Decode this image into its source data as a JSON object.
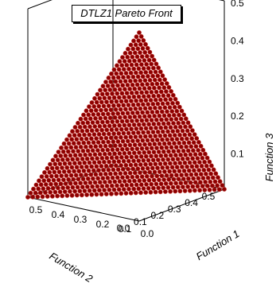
{
  "chart_data": {
    "type": "scatter3d",
    "title": "DTLZ1 Pareto Front",
    "x_axis": {
      "label": "Function 1",
      "range": [
        0,
        0.5
      ],
      "ticks": [
        "0.0",
        "0.1",
        "0.2",
        "0.3",
        "0.4",
        "0.5"
      ]
    },
    "y_axis": {
      "label": "Function 2",
      "range": [
        0,
        0.5
      ],
      "ticks": [
        "0.0",
        "0.1",
        "0.2",
        "0.3",
        "0.4",
        "0.5"
      ]
    },
    "z_axis": {
      "label": "Function 3",
      "range": [
        0,
        0.5
      ],
      "ticks": [
        "0.1",
        "0.2",
        "0.3",
        "0.4",
        "0.5"
      ]
    },
    "surface": "f1 + f2 + f3 = 0.5",
    "grid_divisions": 40,
    "marker_color": "#8b0000",
    "marker_highlight": "#c0302a",
    "grid": false
  }
}
